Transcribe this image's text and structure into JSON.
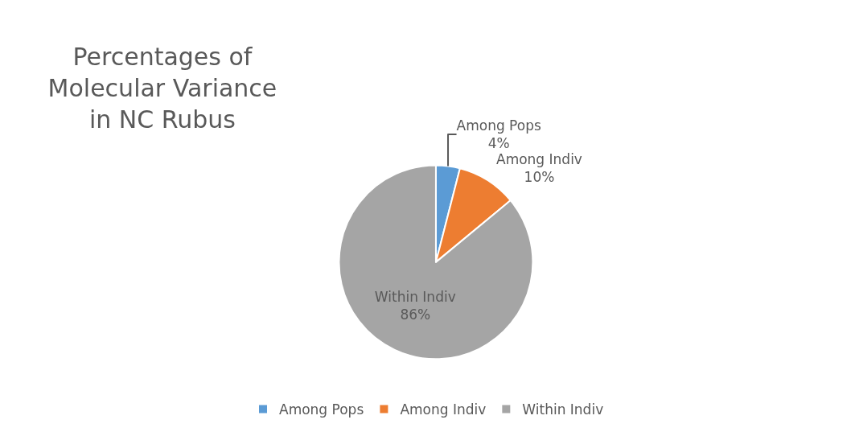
{
  "chart_data": {
    "type": "pie",
    "title": "Percentages of\nMolecular Variance\nin NC Rubus",
    "categories": [
      "Among Pops",
      "Among Indiv",
      "Within Indiv"
    ],
    "values": [
      4,
      10,
      86
    ],
    "value_labels": [
      "4%",
      "10%",
      "86%"
    ],
    "colors": [
      "#5b9bd5",
      "#ed7d31",
      "#a5a5a5"
    ],
    "legend": "bottom"
  }
}
